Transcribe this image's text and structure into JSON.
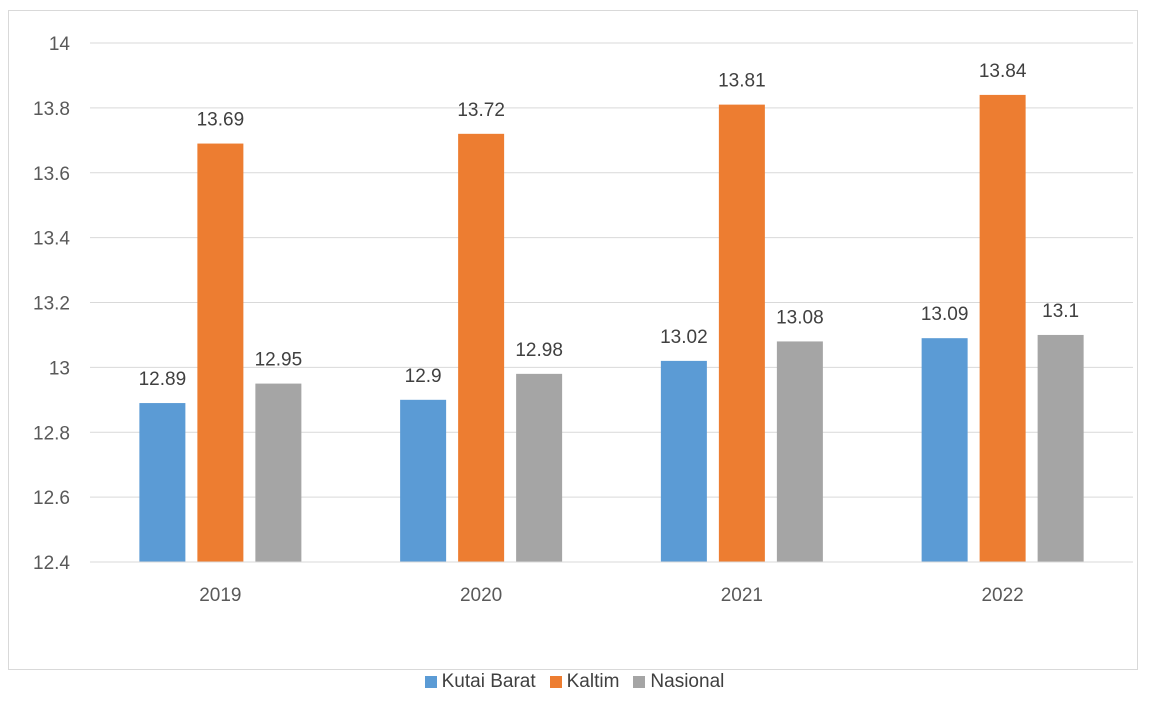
{
  "chart_data": {
    "type": "bar",
    "title": "",
    "xlabel": "",
    "ylabel": "",
    "categories": [
      "2019",
      "2020",
      "2021",
      "2022"
    ],
    "series": [
      {
        "name": "Kutai Barat",
        "color": "#5b9bd5",
        "values": [
          12.89,
          12.9,
          13.02,
          13.09
        ]
      },
      {
        "name": "Kaltim",
        "color": "#ed7d31",
        "values": [
          13.69,
          13.72,
          13.81,
          13.84
        ]
      },
      {
        "name": "Nasional",
        "color": "#a5a5a5",
        "values": [
          12.95,
          12.98,
          13.08,
          13.1
        ]
      }
    ],
    "ylim": [
      12.4,
      14
    ],
    "yticks": [
      "12.4",
      "12.6",
      "12.8",
      "13",
      "13.2",
      "13.4",
      "13.6",
      "13.8",
      "14"
    ],
    "grid": true,
    "legend_position": "bottom"
  }
}
